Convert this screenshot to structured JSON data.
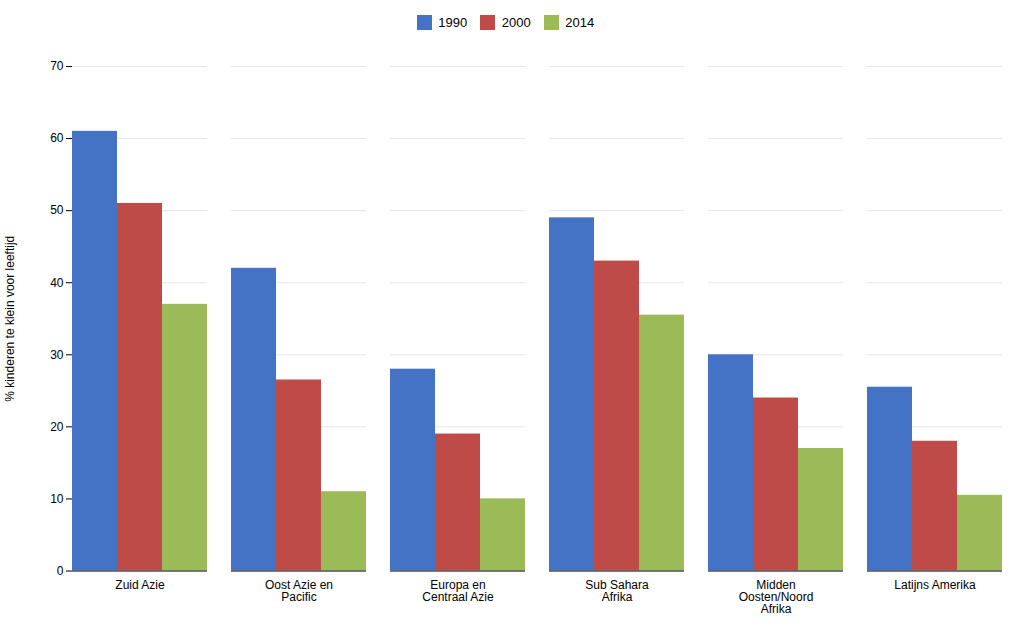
{
  "chart_data": {
    "type": "bar",
    "ylabel": "% kinderen te klein voor leeftijd",
    "categories": [
      "Zuid Azie",
      "Oost Azie en\nPacific",
      "Europa en\nCentraal Azie",
      "Sub Sahara\nAfrika",
      "Midden\nOosten/Noord\nAfrika",
      "Latijns Amerika"
    ],
    "series": [
      {
        "name": "1990",
        "color": "#4472C4",
        "values": [
          61,
          42,
          28,
          49,
          30,
          25.5
        ]
      },
      {
        "name": "2000",
        "color": "#BE4B48",
        "values": [
          51,
          26.5,
          19,
          43,
          24,
          18
        ]
      },
      {
        "name": "2014",
        "color": "#9BBB59",
        "values": [
          37,
          11,
          10,
          35.5,
          17,
          10.5
        ]
      }
    ],
    "ylim": [
      0,
      70
    ],
    "yticks": [
      0,
      10,
      20,
      30,
      40,
      50,
      60,
      70
    ],
    "grid": true,
    "legend": "upper center"
  }
}
